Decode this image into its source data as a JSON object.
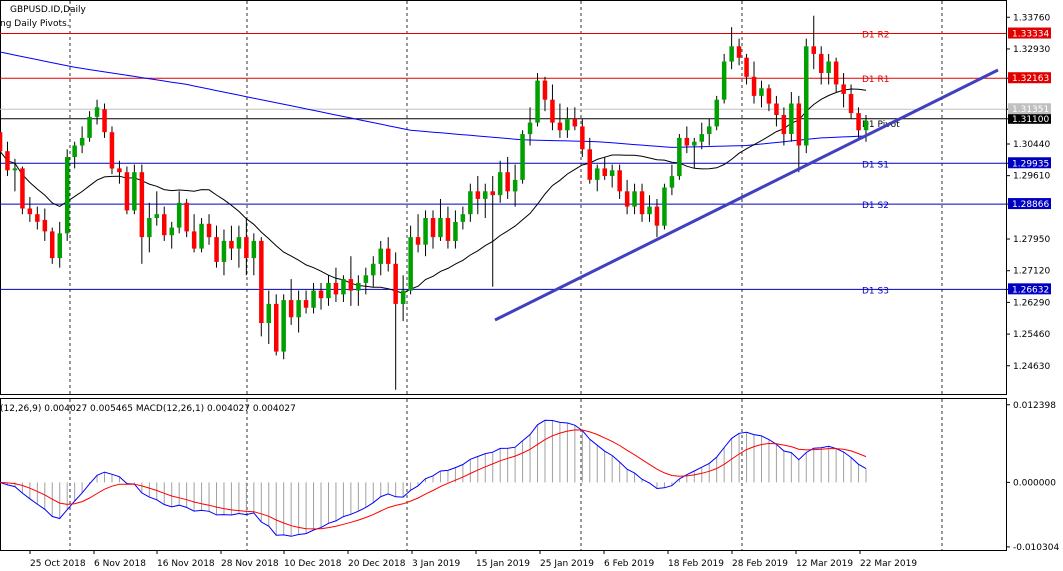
{
  "header": {
    "symbol": "GBPUSD.ID,Daily",
    "indicator": "ng Daily Pivots."
  },
  "colors": {
    "bull": "#00a000",
    "bear": "#ff0000",
    "wick": "#000000",
    "resistance": "#e00000",
    "support": "#0000c0",
    "ma_fast": "#000000",
    "ma_slow": "#0000ff",
    "trendline": "#4040c0",
    "macd_line": "#0000ff",
    "signal_line": "#ff0000",
    "histogram": "#a0a0a0"
  },
  "chart_data": {
    "type": "candlestick",
    "price_axis": {
      "min": 1.2389,
      "max": 1.3416,
      "ticks": [
        "1.33760",
        "1.32930",
        "1.32163",
        "1.31351",
        "1.31100",
        "1.30440",
        "1.29935",
        "1.29610",
        "1.28866",
        "1.27950",
        "1.27120",
        "1.26632",
        "1.26290",
        "1.25460",
        "1.24630"
      ]
    },
    "dates": [
      "25 Oct 2018",
      "6 Nov 2018",
      "16 Nov 2018",
      "28 Nov 2018",
      "10 Dec 2018",
      "20 Dec 2018",
      "3 Jan 2019",
      "15 Jan 2019",
      "25 Jan 2019",
      "6 Feb 2019",
      "18 Feb 2019",
      "28 Feb 2019",
      "12 Mar 2019",
      "22 Mar 2019"
    ],
    "pivots": [
      {
        "label": "D1  R2",
        "value": 1.33334,
        "tag": "1.33334",
        "kind": "r"
      },
      {
        "label": "D1  R1",
        "value": 1.32163,
        "tag": "1.32163",
        "kind": "r"
      },
      {
        "label": "D1  Pivot",
        "value": 1.311,
        "tag": "1.31100",
        "kind": "p"
      },
      {
        "label": "D1  S1",
        "value": 1.29935,
        "tag": "1.29935",
        "kind": "s"
      },
      {
        "label": "D1  S2",
        "value": 1.28866,
        "tag": "1.28866",
        "kind": "s"
      },
      {
        "label": "D1  S3",
        "value": 1.26632,
        "tag": "1.26632",
        "kind": "s"
      }
    ],
    "current_price": {
      "value": 1.31351,
      "tag": "1.31351"
    },
    "ohlc": [
      [
        1.3075,
        1.3115,
        1.301,
        1.3025
      ],
      [
        1.3025,
        1.305,
        1.296,
        1.2975
      ],
      [
        1.2975,
        1.3005,
        1.292,
        1.298
      ],
      [
        1.298,
        1.2985,
        1.286,
        1.2875
      ],
      [
        1.2875,
        1.2905,
        1.284,
        1.286
      ],
      [
        1.286,
        1.288,
        1.282,
        1.284
      ],
      [
        1.2845,
        1.2875,
        1.279,
        1.2815
      ],
      [
        1.2815,
        1.2825,
        1.273,
        1.2745
      ],
      [
        1.2745,
        1.284,
        1.272,
        1.281
      ],
      [
        1.281,
        1.303,
        1.279,
        1.301
      ],
      [
        1.301,
        1.305,
        1.298,
        1.304
      ],
      [
        1.304,
        1.309,
        1.302,
        1.306
      ],
      [
        1.306,
        1.313,
        1.305,
        1.3115
      ],
      [
        1.3115,
        1.316,
        1.3095,
        1.314
      ],
      [
        1.3135,
        1.315,
        1.306,
        1.3075
      ],
      [
        1.3075,
        1.309,
        1.2965,
        1.298
      ],
      [
        1.298,
        1.3,
        1.294,
        1.297
      ],
      [
        1.297,
        1.2985,
        1.286,
        1.287
      ],
      [
        1.287,
        1.299,
        1.286,
        1.297
      ],
      [
        1.297,
        1.299,
        1.273,
        1.28
      ],
      [
        1.28,
        1.289,
        1.276,
        1.285
      ],
      [
        1.285,
        1.292,
        1.283,
        1.286
      ],
      [
        1.286,
        1.288,
        1.279,
        1.2805
      ],
      [
        1.2805,
        1.284,
        1.277,
        1.2825
      ],
      [
        1.2825,
        1.292,
        1.281,
        1.289
      ],
      [
        1.289,
        1.29,
        1.28,
        1.2815
      ],
      [
        1.2815,
        1.286,
        1.276,
        1.277
      ],
      [
        1.277,
        1.285,
        1.276,
        1.2835
      ],
      [
        1.2835,
        1.286,
        1.278,
        1.28
      ],
      [
        1.28,
        1.283,
        1.272,
        1.2735
      ],
      [
        1.2735,
        1.282,
        1.27,
        1.279
      ],
      [
        1.279,
        1.283,
        1.274,
        1.277
      ],
      [
        1.277,
        1.283,
        1.272,
        1.28
      ],
      [
        1.28,
        1.285,
        1.27,
        1.2745
      ],
      [
        1.2745,
        1.281,
        1.27,
        1.279
      ],
      [
        1.279,
        1.28,
        1.254,
        1.2575
      ],
      [
        1.2575,
        1.266,
        1.252,
        1.2625
      ],
      [
        1.2625,
        1.265,
        1.249,
        1.25
      ],
      [
        1.25,
        1.265,
        1.248,
        1.2635
      ],
      [
        1.2635,
        1.269,
        1.257,
        1.259
      ],
      [
        1.259,
        1.266,
        1.255,
        1.2635
      ],
      [
        1.2635,
        1.266,
        1.26,
        1.2615
      ],
      [
        1.2615,
        1.268,
        1.26,
        1.266
      ],
      [
        1.266,
        1.268,
        1.261,
        1.264
      ],
      [
        1.264,
        1.27,
        1.262,
        1.268
      ],
      [
        1.268,
        1.272,
        1.263,
        1.265
      ],
      [
        1.265,
        1.27,
        1.263,
        1.269
      ],
      [
        1.269,
        1.275,
        1.262,
        1.266
      ],
      [
        1.266,
        1.27,
        1.262,
        1.268
      ],
      [
        1.268,
        1.272,
        1.265,
        1.27
      ],
      [
        1.27,
        1.275,
        1.267,
        1.273
      ],
      [
        1.273,
        1.279,
        1.27,
        1.277
      ],
      [
        1.277,
        1.28,
        1.271,
        1.273
      ],
      [
        1.273,
        1.276,
        1.24,
        1.2625
      ],
      [
        1.2625,
        1.27,
        1.258,
        1.266
      ],
      [
        1.266,
        1.283,
        1.265,
        1.28
      ],
      [
        1.28,
        1.286,
        1.276,
        1.278
      ],
      [
        1.278,
        1.287,
        1.275,
        1.285
      ],
      [
        1.285,
        1.287,
        1.277,
        1.28
      ],
      [
        1.28,
        1.29,
        1.279,
        1.285
      ],
      [
        1.285,
        1.288,
        1.277,
        1.279
      ],
      [
        1.279,
        1.287,
        1.277,
        1.284
      ],
      [
        1.284,
        1.288,
        1.282,
        1.286
      ],
      [
        1.286,
        1.294,
        1.284,
        1.292
      ],
      [
        1.292,
        1.296,
        1.286,
        1.29
      ],
      [
        1.29,
        1.294,
        1.285,
        1.292
      ],
      [
        1.292,
        1.296,
        1.267,
        1.291
      ],
      [
        1.291,
        1.3,
        1.289,
        1.297
      ],
      [
        1.297,
        1.301,
        1.29,
        1.292
      ],
      [
        1.292,
        1.299,
        1.288,
        1.295
      ],
      [
        1.295,
        1.308,
        1.294,
        1.307
      ],
      [
        1.307,
        1.314,
        1.304,
        1.31
      ],
      [
        1.31,
        1.323,
        1.309,
        1.321
      ],
      [
        1.321,
        1.322,
        1.313,
        1.316
      ],
      [
        1.316,
        1.32,
        1.308,
        1.31
      ],
      [
        1.31,
        1.315,
        1.306,
        1.308
      ],
      [
        1.308,
        1.314,
        1.306,
        1.311
      ],
      [
        1.311,
        1.314,
        1.308,
        1.309
      ],
      [
        1.309,
        1.311,
        1.301,
        1.303
      ],
      [
        1.303,
        1.306,
        1.294,
        1.295
      ],
      [
        1.295,
        1.299,
        1.292,
        1.298
      ],
      [
        1.298,
        1.301,
        1.295,
        1.296
      ],
      [
        1.296,
        1.299,
        1.293,
        1.2975
      ],
      [
        1.2975,
        1.299,
        1.29,
        1.292
      ],
      [
        1.292,
        1.295,
        1.286,
        1.288
      ],
      [
        1.288,
        1.294,
        1.286,
        1.292
      ],
      [
        1.292,
        1.294,
        1.284,
        1.286
      ],
      [
        1.286,
        1.291,
        1.284,
        1.288
      ],
      [
        1.288,
        1.29,
        1.28,
        1.283
      ],
      [
        1.283,
        1.294,
        1.282,
        1.293
      ],
      [
        1.293,
        1.299,
        1.291,
        1.296
      ],
      [
        1.296,
        1.307,
        1.295,
        1.306
      ],
      [
        1.306,
        1.309,
        1.302,
        1.304
      ],
      [
        1.304,
        1.306,
        1.298,
        1.305
      ],
      [
        1.305,
        1.31,
        1.303,
        1.307
      ],
      [
        1.307,
        1.311,
        1.304,
        1.309
      ],
      [
        1.309,
        1.317,
        1.308,
        1.316
      ],
      [
        1.316,
        1.328,
        1.315,
        1.326
      ],
      [
        1.326,
        1.335,
        1.324,
        1.33
      ],
      [
        1.33,
        1.332,
        1.325,
        1.327
      ],
      [
        1.327,
        1.328,
        1.32,
        1.322
      ],
      [
        1.322,
        1.326,
        1.315,
        1.317
      ],
      [
        1.317,
        1.321,
        1.314,
        1.319
      ],
      [
        1.319,
        1.32,
        1.313,
        1.315
      ],
      [
        1.315,
        1.317,
        1.309,
        1.312
      ],
      [
        1.312,
        1.314,
        1.304,
        1.307
      ],
      [
        1.307,
        1.318,
        1.305,
        1.315
      ],
      [
        1.315,
        1.317,
        1.297,
        1.304
      ],
      [
        1.304,
        1.332,
        1.302,
        1.33
      ],
      [
        1.33,
        1.338,
        1.324,
        1.328
      ],
      [
        1.328,
        1.33,
        1.32,
        1.323
      ],
      [
        1.323,
        1.328,
        1.32,
        1.326
      ],
      [
        1.326,
        1.327,
        1.318,
        1.32
      ],
      [
        1.32,
        1.323,
        1.314,
        1.3175
      ],
      [
        1.3175,
        1.32,
        1.311,
        1.3125
      ],
      [
        1.3125,
        1.314,
        1.306,
        1.308
      ],
      [
        1.308,
        1.312,
        1.305,
        1.3105
      ]
    ],
    "macd": {
      "label": "(12,26,9) 0.004027 0.005465 MACD(12,26,1) 0.004027 0.004027",
      "axis": {
        "min": -0.0108,
        "max": 0.013,
        "ticks": [
          "0.012398",
          "0.000000",
          "-0.010304"
        ]
      }
    }
  }
}
